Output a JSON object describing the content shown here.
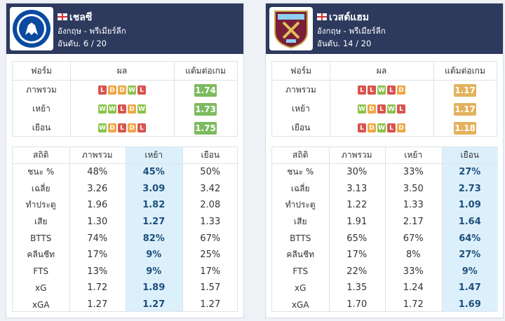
{
  "teams": [
    {
      "name": "เชลซี",
      "league": "อังกฤษ - พรีเมียร์ลีก",
      "rank": "อันดับ. 6 / 20",
      "form": {
        "headers": [
          "ฟอร์ม",
          "ผล",
          "แต้มต่อเกม"
        ],
        "ppg_color": "#7cbb5e",
        "rows": [
          {
            "label": "ภาพรวม",
            "results": [
              "L",
              "D",
              "D",
              "W",
              "L"
            ],
            "ppg": "1.74"
          },
          {
            "label": "เหย้า",
            "results": [
              "W",
              "W",
              "L",
              "D",
              "W"
            ],
            "ppg": "1.73"
          },
          {
            "label": "เยือน",
            "results": [
              "W",
              "D",
              "L",
              "D",
              "L"
            ],
            "ppg": "1.75"
          }
        ]
      },
      "stats": {
        "headers": [
          "สถิติ",
          "ภาพรวม",
          "เหย้า",
          "เยือน"
        ],
        "highlight_column": 2,
        "rows": [
          {
            "label": "ชนะ %",
            "values": [
              "48%",
              "45%",
              "50%"
            ]
          },
          {
            "label": "เฉลี่ย",
            "values": [
              "3.26",
              "3.09",
              "3.42"
            ]
          },
          {
            "label": "ทำประตู",
            "values": [
              "1.96",
              "1.82",
              "2.08"
            ]
          },
          {
            "label": "เสีย",
            "values": [
              "1.30",
              "1.27",
              "1.33"
            ]
          },
          {
            "label": "BTTS",
            "values": [
              "74%",
              "82%",
              "67%"
            ]
          },
          {
            "label": "คลีนชีท",
            "values": [
              "17%",
              "9%",
              "25%"
            ]
          },
          {
            "label": "FTS",
            "values": [
              "13%",
              "9%",
              "17%"
            ]
          },
          {
            "label": "xG",
            "values": [
              "1.72",
              "1.89",
              "1.57"
            ]
          },
          {
            "label": "xGA",
            "values": [
              "1.27",
              "1.27",
              "1.27"
            ]
          }
        ]
      }
    },
    {
      "name": "เวสต์แฮม",
      "league": "อังกฤษ - พรีเมียร์ลีก",
      "rank": "อันดับ. 14 / 20",
      "form": {
        "headers": [
          "ฟอร์ม",
          "ผล",
          "แต้มต่อเกม"
        ],
        "ppg_color": "#e2b25e",
        "rows": [
          {
            "label": "ภาพรวม",
            "results": [
              "L",
              "L",
              "W",
              "L",
              "D"
            ],
            "ppg": "1.17"
          },
          {
            "label": "เหย้า",
            "results": [
              "W",
              "D",
              "L",
              "W",
              "L"
            ],
            "ppg": "1.17"
          },
          {
            "label": "เยือน",
            "results": [
              "L",
              "D",
              "W",
              "L",
              "D"
            ],
            "ppg": "1.18"
          }
        ]
      },
      "stats": {
        "headers": [
          "สถิติ",
          "ภาพรวม",
          "เหย้า",
          "เยือน"
        ],
        "highlight_column": 3,
        "rows": [
          {
            "label": "ชนะ %",
            "values": [
              "30%",
              "33%",
              "27%"
            ]
          },
          {
            "label": "เฉลี่ย",
            "values": [
              "3.13",
              "3.50",
              "2.73"
            ]
          },
          {
            "label": "ทำประตู",
            "values": [
              "1.22",
              "1.33",
              "1.09"
            ]
          },
          {
            "label": "เสีย",
            "values": [
              "1.91",
              "2.17",
              "1.64"
            ]
          },
          {
            "label": "BTTS",
            "values": [
              "65%",
              "67%",
              "64%"
            ]
          },
          {
            "label": "คลีนชีท",
            "values": [
              "17%",
              "8%",
              "27%"
            ]
          },
          {
            "label": "FTS",
            "values": [
              "22%",
              "33%",
              "9%"
            ]
          },
          {
            "label": "xG",
            "values": [
              "1.35",
              "1.24",
              "1.47"
            ]
          },
          {
            "label": "xGA",
            "values": [
              "1.70",
              "1.72",
              "1.69"
            ]
          }
        ]
      }
    }
  ]
}
